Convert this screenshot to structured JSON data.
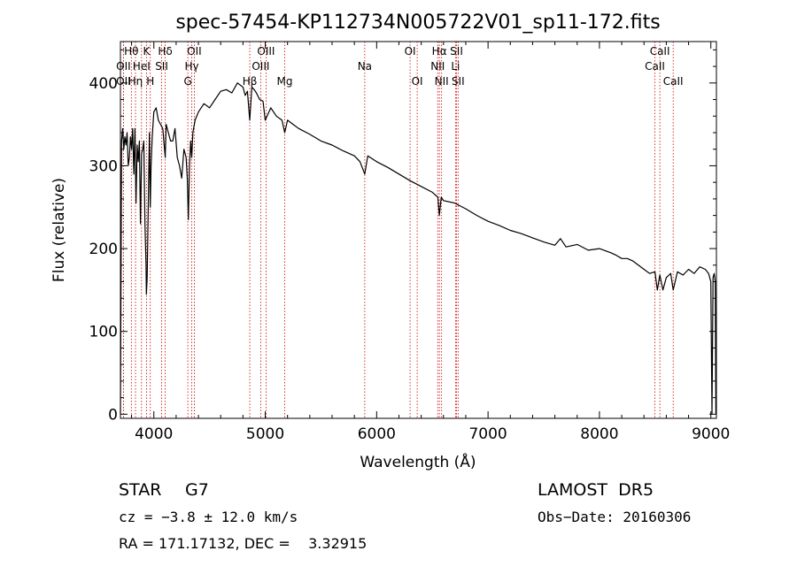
{
  "chart_data": {
    "type": "line",
    "title": "spec-57454-KP112734N005722V01_sp11-172.fits",
    "xlabel": "Wavelength (Å)",
    "ylabel": "Flux (relative)",
    "xlim": [
      3700,
      9050
    ],
    "ylim": [
      -5,
      450
    ],
    "x_ticks": [
      4000,
      5000,
      6000,
      7000,
      8000,
      9000
    ],
    "y_ticks": [
      0,
      100,
      200,
      300,
      400
    ],
    "grid": false,
    "line_color": "#000000",
    "marker_color": "#cc0000",
    "series": [
      {
        "x": [
          3700,
          3710,
          3720,
          3730,
          3740,
          3750,
          3760,
          3770,
          3780,
          3790,
          3800,
          3810,
          3820,
          3830,
          3840,
          3850,
          3860,
          3870,
          3880,
          3890,
          3900,
          3910,
          3920,
          3930,
          3933,
          3940,
          3950,
          3960,
          3968,
          3975,
          3985,
          4000,
          4020,
          4040,
          4060,
          4080,
          4102,
          4110,
          4130,
          4150,
          4170,
          4190,
          4210,
          4230,
          4250,
          4270,
          4290,
          4300,
          4310,
          4320,
          4330,
          4340,
          4350,
          4370,
          4400,
          4450,
          4500,
          4550,
          4600,
          4650,
          4700,
          4750,
          4800,
          4820,
          4840,
          4861,
          4880,
          4900,
          4920,
          4950,
          4980,
          5000,
          5050,
          5100,
          5150,
          5175,
          5200,
          5250,
          5300,
          5400,
          5500,
          5600,
          5700,
          5800,
          5850,
          5893,
          5920,
          6000,
          6100,
          6200,
          6300,
          6400,
          6500,
          6550,
          6563,
          6580,
          6600,
          6700,
          6800,
          6900,
          7000,
          7100,
          7200,
          7300,
          7400,
          7500,
          7600,
          7650,
          7700,
          7800,
          7900,
          8000,
          8100,
          8150,
          8200,
          8250,
          8300,
          8400,
          8450,
          8498,
          8520,
          8542,
          8570,
          8600,
          8640,
          8662,
          8700,
          8750,
          8800,
          8850,
          8900,
          8950,
          8980,
          9000,
          9010,
          9020,
          9030,
          9040,
          9045
        ],
        "y": [
          0,
          330,
          345,
          320,
          335,
          325,
          340,
          300,
          310,
          335,
          320,
          345,
          290,
          345,
          255,
          325,
          305,
          330,
          230,
          315,
          320,
          330,
          230,
          180,
          145,
          165,
          250,
          340,
          250,
          300,
          335,
          365,
          370,
          355,
          350,
          345,
          310,
          350,
          340,
          330,
          330,
          345,
          310,
          300,
          285,
          320,
          310,
          285,
          235,
          300,
          330,
          310,
          340,
          355,
          365,
          375,
          370,
          380,
          390,
          392,
          388,
          400,
          395,
          385,
          390,
          355,
          395,
          392,
          388,
          380,
          378,
          355,
          370,
          360,
          355,
          340,
          355,
          350,
          345,
          338,
          330,
          325,
          318,
          312,
          305,
          290,
          312,
          305,
          298,
          290,
          282,
          275,
          268,
          262,
          240,
          262,
          258,
          255,
          248,
          240,
          233,
          228,
          222,
          218,
          213,
          208,
          204,
          212,
          202,
          205,
          198,
          200,
          195,
          192,
          188,
          188,
          185,
          175,
          170,
          172,
          150,
          168,
          150,
          165,
          170,
          150,
          172,
          168,
          175,
          170,
          178,
          175,
          170,
          160,
          0,
          165,
          170,
          160,
          0
        ]
      }
    ],
    "spectral_lines": [
      {
        "name": "Hθ",
        "wavelength": 3798,
        "row": 0
      },
      {
        "name": "K",
        "wavelength": 3934,
        "row": 0
      },
      {
        "name": "Hδ",
        "wavelength": 4102,
        "row": 0
      },
      {
        "name": "OII",
        "wavelength": 4363,
        "row": 0
      },
      {
        "name": "OIII",
        "wavelength": 5007,
        "row": 0
      },
      {
        "name": "OI",
        "wavelength": 6300,
        "row": 0
      },
      {
        "name": "Hα",
        "wavelength": 6563,
        "row": 0
      },
      {
        "name": "SII",
        "wavelength": 6717,
        "row": 0
      },
      {
        "name": "CaII",
        "wavelength": 8542,
        "row": 0
      },
      {
        "name": "OII",
        "wavelength": 3727,
        "row": 1
      },
      {
        "name": "HeI",
        "wavelength": 3889,
        "row": 1
      },
      {
        "name": "SII",
        "wavelength": 4070,
        "row": 1
      },
      {
        "name": "Hγ",
        "wavelength": 4340,
        "row": 1
      },
      {
        "name": "OIII",
        "wavelength": 4959,
        "row": 1
      },
      {
        "name": "Na",
        "wavelength": 5893,
        "row": 1
      },
      {
        "name": "NII",
        "wavelength": 6548,
        "row": 1
      },
      {
        "name": "Li",
        "wavelength": 6708,
        "row": 1
      },
      {
        "name": "CaII",
        "wavelength": 8498,
        "row": 1
      },
      {
        "name": "OII",
        "wavelength": 3727,
        "row": 2
      },
      {
        "name": "Hη",
        "wavelength": 3835,
        "row": 2
      },
      {
        "name": "H",
        "wavelength": 3968,
        "row": 2
      },
      {
        "name": "G",
        "wavelength": 4305,
        "row": 2
      },
      {
        "name": "Hβ",
        "wavelength": 4861,
        "row": 2
      },
      {
        "name": "Mg",
        "wavelength": 5175,
        "row": 2
      },
      {
        "name": "OI",
        "wavelength": 6364,
        "row": 2
      },
      {
        "name": "NII",
        "wavelength": 6583,
        "row": 2
      },
      {
        "name": "SII",
        "wavelength": 6731,
        "row": 2
      },
      {
        "name": "CaII",
        "wavelength": 8662,
        "row": 2
      }
    ]
  },
  "info": {
    "object_class": "STAR",
    "subclass": "G7",
    "survey": "LAMOST  DR5",
    "cz": "cz = −3.8 ± 12.0 km/s",
    "obs_date": "Obs−Date: 20160306",
    "coords": "RA = 171.17132, DEC =    3.32915"
  }
}
